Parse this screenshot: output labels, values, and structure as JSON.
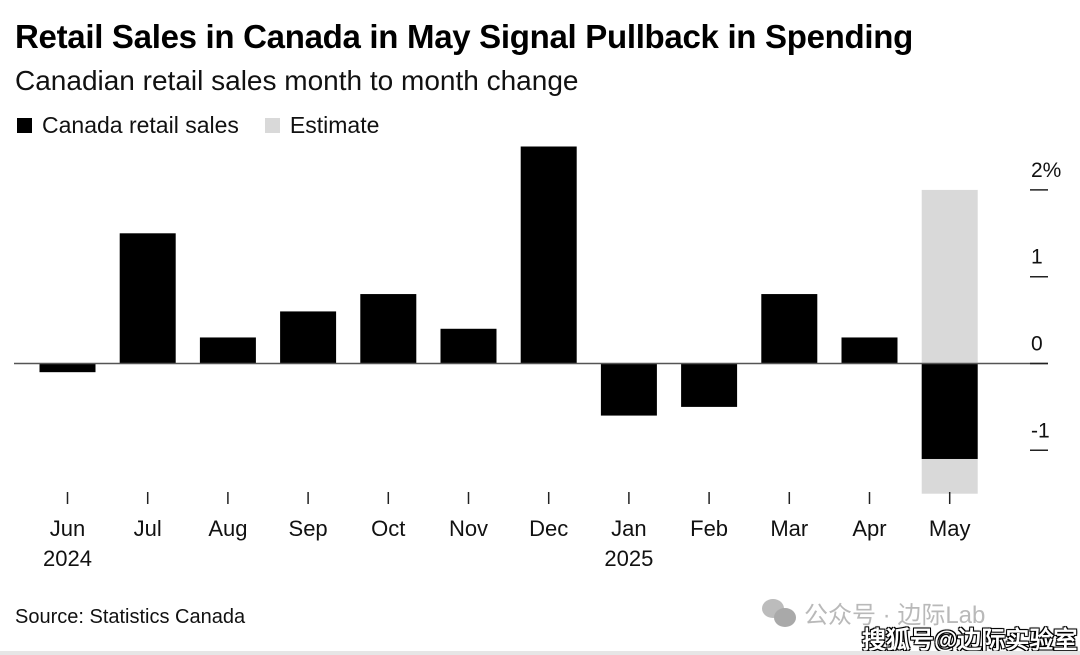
{
  "chart_data": {
    "type": "bar",
    "title": "Retail Sales in Canada in May Signal Pullback in Spending",
    "subtitle": "Canadian retail sales month to month change",
    "xlabel": "",
    "ylabel": "",
    "unit": "%",
    "categories": [
      "Jun",
      "Jul",
      "Aug",
      "Sep",
      "Oct",
      "Nov",
      "Dec",
      "Jan",
      "Feb",
      "Mar",
      "Apr",
      "May"
    ],
    "year_labels": [
      {
        "category": "Jun",
        "label": "2024"
      },
      {
        "category": "Jan",
        "label": "2025"
      }
    ],
    "series": [
      {
        "name": "Canada retail sales",
        "color": "#000000",
        "values": [
          -0.1,
          1.5,
          0.3,
          0.6,
          0.8,
          0.4,
          2.5,
          -0.6,
          -0.5,
          0.8,
          0.3,
          -1.1
        ]
      },
      {
        "name": "Estimate",
        "color": "#d9d9d9",
        "type": "range",
        "ranges": [
          null,
          null,
          null,
          null,
          null,
          null,
          null,
          null,
          null,
          null,
          null,
          [
            -1.5,
            2.0
          ]
        ]
      }
    ],
    "legend": [
      "Canada retail sales",
      "Estimate"
    ],
    "legend_position": "top-left",
    "yticks": [
      {
        "value": 2,
        "label": "2%"
      },
      {
        "value": 1,
        "label": "1"
      },
      {
        "value": 0,
        "label": "0"
      },
      {
        "value": -1,
        "label": "-1"
      }
    ],
    "ylim": [
      -1.5,
      2.55
    ],
    "yaxis_side": "right",
    "grid": false
  },
  "source": "Source: Statistics Canada",
  "watermarks": {
    "wechat": "公众号 · 边际Lab",
    "sohu": "搜狐号@边际实验室"
  }
}
